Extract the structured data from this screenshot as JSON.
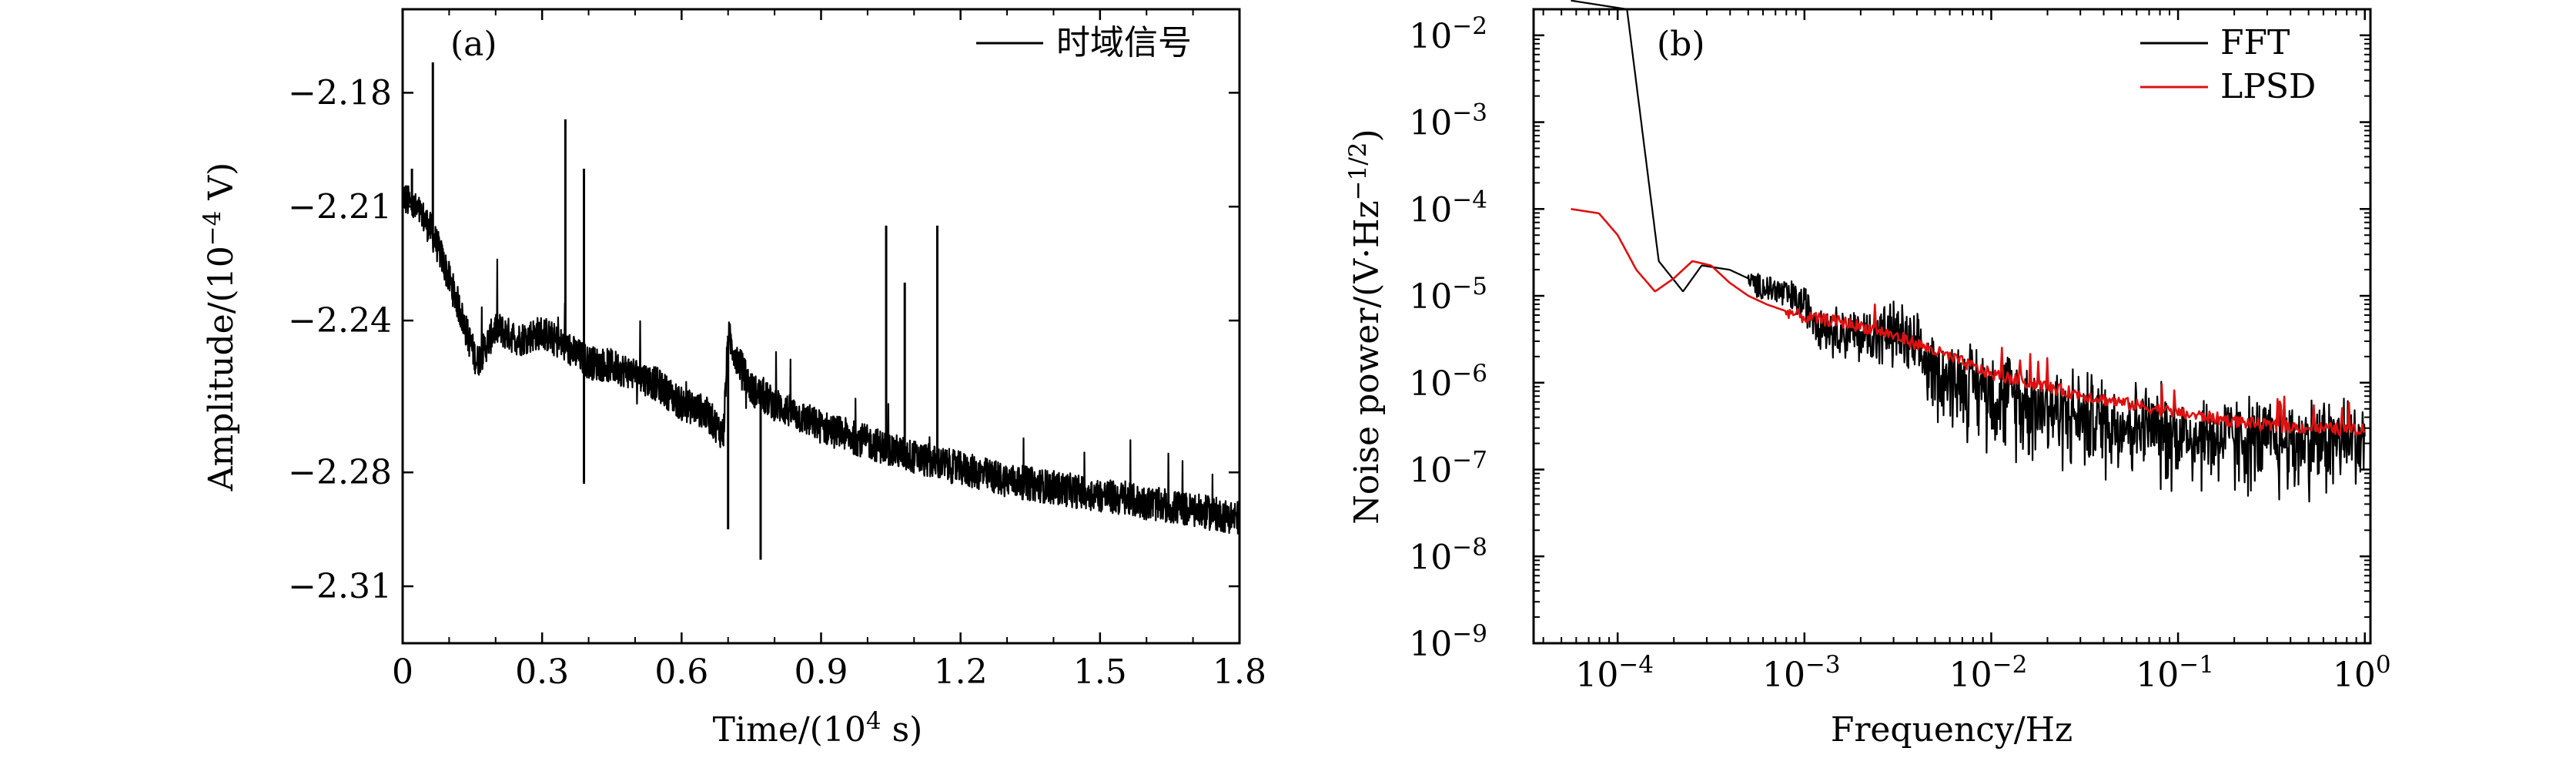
{
  "chart_data": [
    {
      "type": "line",
      "panel_label": "(a)",
      "title": "",
      "xlabel_prefix": "Time/(10",
      "xlabel_exp": "4",
      "xlabel_suffix": " s)",
      "ylabel_prefix": "Amplitude/(10",
      "ylabel_exp": "−4",
      "ylabel_suffix": " V)",
      "xlim": [
        0,
        1.8
      ],
      "ylim": [
        -2.325,
        -2.158
      ],
      "xticks": [
        {
          "v": 0,
          "label": "0"
        },
        {
          "v": 0.3,
          "label": "0.3"
        },
        {
          "v": 0.6,
          "label": "0.6"
        },
        {
          "v": 0.9,
          "label": "0.9"
        },
        {
          "v": 1.2,
          "label": "1.2"
        },
        {
          "v": 1.5,
          "label": "1.5"
        },
        {
          "v": 1.8,
          "label": "1.8"
        }
      ],
      "yticks": [
        {
          "v": -2.18,
          "label": "−2.18"
        },
        {
          "v": -2.21,
          "label": "−2.21"
        },
        {
          "v": -2.24,
          "label": "−2.24"
        },
        {
          "v": -2.28,
          "label": "−2.28"
        },
        {
          "v": -2.31,
          "label": "−2.31"
        }
      ],
      "legend_position": "top-right",
      "series": [
        {
          "name": "时域信号",
          "color": "#000000",
          "x": [
            0,
            0.02,
            0.04,
            0.06,
            0.08,
            0.1,
            0.12,
            0.14,
            0.16,
            0.2,
            0.25,
            0.3,
            0.35,
            0.4,
            0.45,
            0.5,
            0.55,
            0.6,
            0.65,
            0.69,
            0.7,
            0.72,
            0.75,
            0.8,
            0.85,
            0.9,
            0.95,
            1.0,
            1.1,
            1.2,
            1.3,
            1.4,
            1.5,
            1.6,
            1.7,
            1.8
          ],
          "y": [
            -2.207,
            -2.21,
            -2.212,
            -2.216,
            -2.222,
            -2.229,
            -2.236,
            -2.244,
            -2.251,
            -2.242,
            -2.245,
            -2.243,
            -2.247,
            -2.251,
            -2.252,
            -2.254,
            -2.257,
            -2.262,
            -2.264,
            -2.27,
            -2.244,
            -2.25,
            -2.258,
            -2.262,
            -2.265,
            -2.268,
            -2.27,
            -2.272,
            -2.276,
            -2.279,
            -2.282,
            -2.284,
            -2.286,
            -2.288,
            -2.29,
            -2.292
          ]
        }
      ],
      "spikes": [
        {
          "x": 0.02,
          "y": -2.2
        },
        {
          "x": 0.065,
          "y": -2.172
        },
        {
          "x": 0.35,
          "y": -2.187
        },
        {
          "x": 0.39,
          "y": -2.2
        },
        {
          "x": 0.39,
          "y": -2.283
        },
        {
          "x": 0.7,
          "y": -2.295
        },
        {
          "x": 0.77,
          "y": -2.303
        },
        {
          "x": 1.04,
          "y": -2.215
        },
        {
          "x": 1.15,
          "y": -2.215
        },
        {
          "x": 1.08,
          "y": -2.23
        }
      ]
    },
    {
      "type": "line",
      "panel_label": "(b)",
      "title": "",
      "xscale": "log",
      "yscale": "log",
      "xlabel": "Frequency/Hz",
      "ylabel_prefix": "Noise power/(V·Hz",
      "ylabel_exp": "−1/2",
      "ylabel_suffix": ")",
      "xlim_log10": [
        -4.45,
        0.03
      ],
      "ylim_log10": [
        -9,
        -1.7
      ],
      "xticks": [
        {
          "v": -4,
          "base": "10",
          "exp": "−4"
        },
        {
          "v": -3,
          "base": "10",
          "exp": "−3"
        },
        {
          "v": -2,
          "base": "10",
          "exp": "−2"
        },
        {
          "v": -1,
          "base": "10",
          "exp": "−1"
        },
        {
          "v": 0,
          "base": "10",
          "exp": "0"
        }
      ],
      "yticks": [
        {
          "v": -2,
          "base": "10",
          "exp": "−2"
        },
        {
          "v": -3,
          "base": "10",
          "exp": "−3"
        },
        {
          "v": -4,
          "base": "10",
          "exp": "−4"
        },
        {
          "v": -5,
          "base": "10",
          "exp": "−5"
        },
        {
          "v": -6,
          "base": "10",
          "exp": "−6"
        },
        {
          "v": -7,
          "base": "10",
          "exp": "−7"
        },
        {
          "v": -8,
          "base": "10",
          "exp": "−8"
        },
        {
          "v": -9,
          "base": "10",
          "exp": "−9"
        }
      ],
      "legend_position": "top-right",
      "series": [
        {
          "name": "FFT",
          "color": "#000000",
          "log10_x": [
            -4.25,
            -3.95,
            -3.78,
            -3.65,
            -3.55,
            -3.4,
            -3.25,
            -3.15,
            -3.0,
            -2.9,
            -2.7,
            -2.5,
            -2.3,
            -2.0,
            -1.5,
            -1.0,
            -0.5,
            0.0
          ],
          "log10_y": [
            -1.6,
            -1.7,
            -4.6,
            -4.95,
            -4.65,
            -4.7,
            -4.85,
            -4.9,
            -5.05,
            -5.3,
            -5.4,
            -5.35,
            -5.8,
            -6.0,
            -6.3,
            -6.5,
            -6.6,
            -6.55
          ]
        },
        {
          "name": "LPSD",
          "color": "#dd1111",
          "log10_x": [
            -4.25,
            -4.1,
            -4.0,
            -3.9,
            -3.8,
            -3.7,
            -3.6,
            -3.5,
            -3.4,
            -3.3,
            -3.2,
            -3.0,
            -2.8,
            -2.6,
            -2.4,
            -2.0,
            -1.5,
            -1.0,
            -0.5,
            0.0
          ],
          "log10_y": [
            -4.0,
            -4.05,
            -4.3,
            -4.7,
            -4.95,
            -4.8,
            -4.6,
            -4.65,
            -4.85,
            -5.0,
            -5.1,
            -5.25,
            -5.3,
            -5.4,
            -5.55,
            -5.9,
            -6.15,
            -6.35,
            -6.5,
            -6.55
          ]
        }
      ]
    }
  ]
}
